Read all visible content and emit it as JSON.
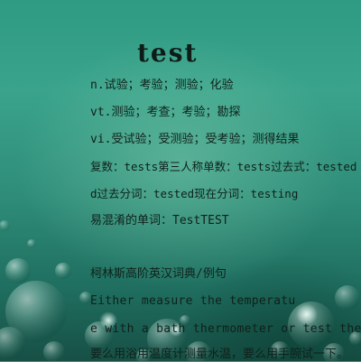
{
  "entry": {
    "word": "test",
    "definitions": [
      "n.试验；考验；测验；化验",
      "vt.测验；考查；考验；勘探",
      "vi.受试验；受测验；受考验；测得结果"
    ],
    "forms_line1": "复数：tests第三人称单数：tests过去式：tested",
    "forms_line2": "d过去分词：tested现在分词：testing",
    "confusables": "易混淆的单词：TestTEST"
  },
  "examples": {
    "section_title": "柯林斯高阶英汉词典/例句",
    "sentence_line1": "Either measure the temperatu",
    "sentence_line2": "e with a bath thermometer or test the",
    "translation_line1": "要么用浴用温度计测量水温，要么用手腕试一下。"
  },
  "colors": {
    "background_top": "#2f9b83",
    "background_bottom": "#174f45",
    "text": "#0f211b"
  }
}
